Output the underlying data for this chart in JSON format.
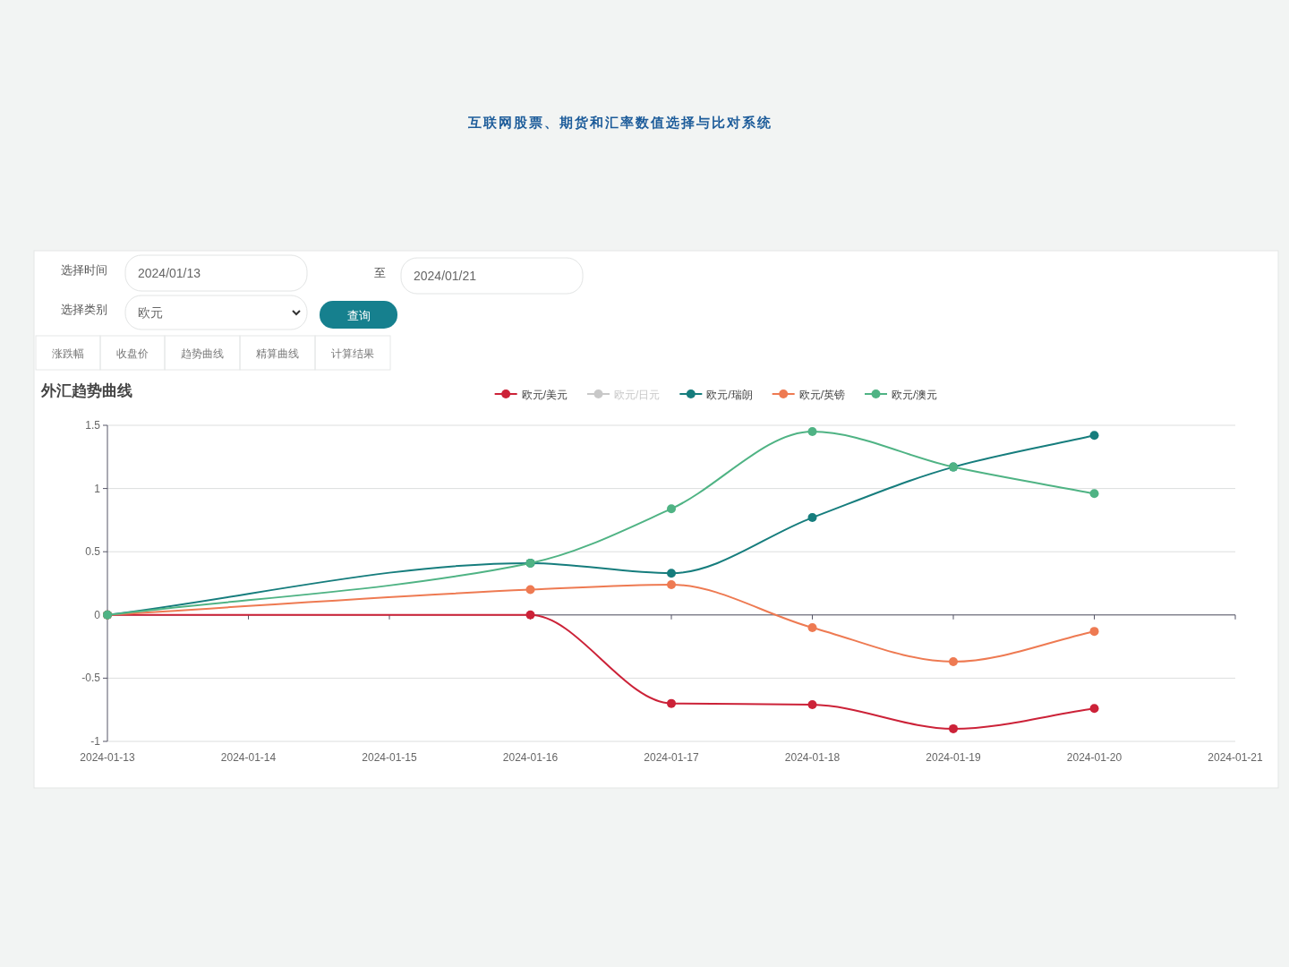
{
  "chart_data": {
    "type": "line",
    "title": "外汇趋势曲线",
    "annotations": [
      "互联网股票、期货和汇率数值选择与比对系统",
      "选择时间",
      "2024/01/13",
      "至",
      "2024/01/21",
      "选择类别",
      "欧元",
      "查询",
      "涨跌幅",
      "收盘价",
      "趋势曲线",
      "精算曲线",
      "计算结果"
    ],
    "x": [
      "2024-01-13",
      "2024-01-16",
      "2024-01-17",
      "2024-01-18",
      "2024-01-19",
      "2024-01-20"
    ],
    "xlim": [
      "2024-01-13",
      "2024-01-21"
    ],
    "xticks": [
      "2024-01-13",
      "2024-01-14",
      "2024-01-15",
      "2024-01-16",
      "2024-01-17",
      "2024-01-18",
      "2024-01-19",
      "2024-01-20",
      "2024-01-21"
    ],
    "ylim": [
      -1,
      1.5
    ],
    "yticks": [
      -1,
      -0.5,
      0,
      0.5,
      1,
      1.5
    ],
    "series": [
      {
        "name": "欧元/美元",
        "color": "#cc2238",
        "values": [
          0,
          0,
          -0.7,
          -0.71,
          -0.9,
          -0.74
        ]
      },
      {
        "name": "欧元/日元",
        "color": "#c8c8c8",
        "values": [
          null,
          null,
          null,
          null,
          null,
          null
        ]
      },
      {
        "name": "欧元/瑞朗",
        "color": "#167d7d",
        "values": [
          0,
          0.41,
          0.33,
          0.77,
          1.17,
          1.42
        ]
      },
      {
        "name": "欧元/英镑",
        "color": "#ee7a52",
        "values": [
          0,
          0.2,
          0.24,
          -0.1,
          -0.37,
          -0.13
        ]
      },
      {
        "name": "欧元/澳元",
        "color": "#4fb384",
        "values": [
          0,
          0.41,
          0.84,
          1.45,
          1.17,
          0.96
        ]
      }
    ],
    "grid": "y",
    "legend": "top",
    "marker": "circle",
    "line_style": "solid"
  }
}
